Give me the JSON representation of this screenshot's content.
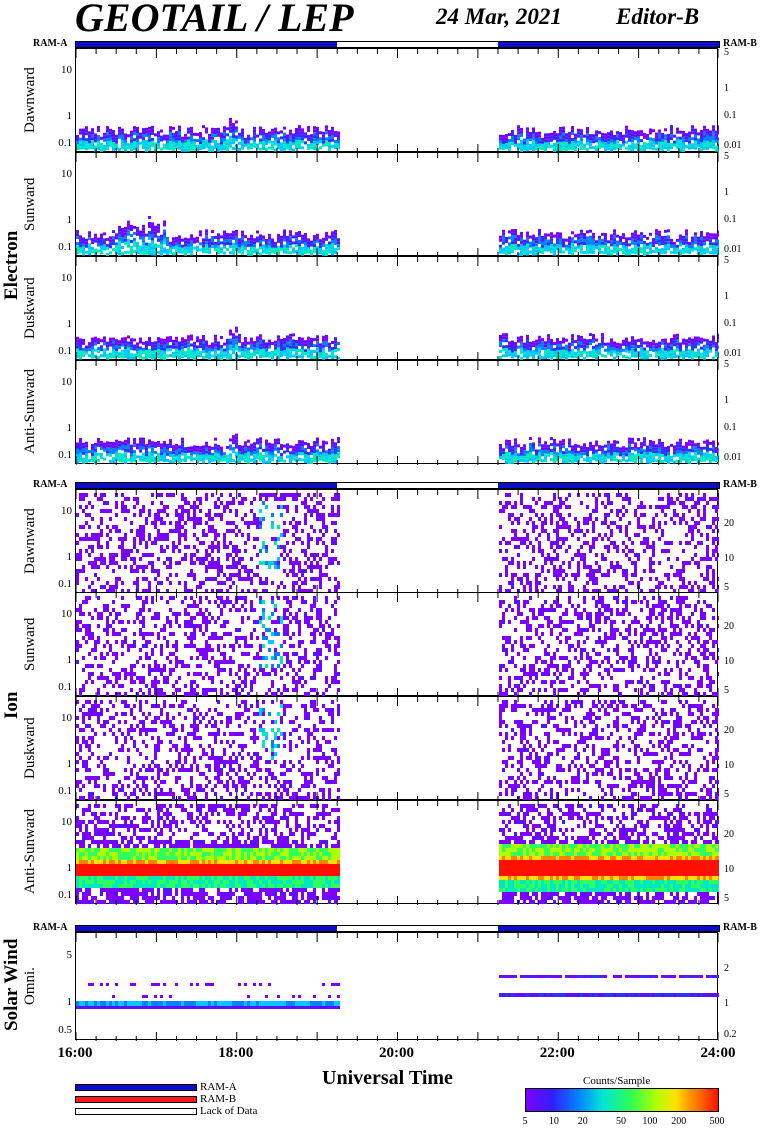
{
  "header": {
    "title": "GEOTAIL / LEP",
    "date": "24 Mar, 2021",
    "editor": "Editor-B"
  },
  "mode_labels": {
    "left": "RAM-A",
    "right": "RAM-B"
  },
  "colors": {
    "ram_a": "#0b10c8",
    "ram_b": "#ff1a1a",
    "lack": "#ffffff"
  },
  "species": {
    "electron": "Electron",
    "ion": "Ion",
    "solar_wind": "Solar Wind"
  },
  "chart_data": {
    "type": "heatmap",
    "xlabel": "Universal Time",
    "x_ticks": [
      "16:00",
      "18:00",
      "20:00",
      "22:00",
      "24:00"
    ],
    "x_range_hours": [
      16,
      24
    ],
    "data_gap_hours": [
      19.25,
      21.25
    ],
    "colorbar": {
      "title": "Counts/Sample",
      "ticks": [
        "5",
        "10",
        "20",
        "50",
        "100",
        "200",
        "500"
      ],
      "range": [
        5,
        500
      ],
      "scale": "log"
    },
    "legend": [
      {
        "name": "RAM-A",
        "color": "#0b10c8"
      },
      {
        "name": "RAM-B",
        "color": "#ff1a1a"
      },
      {
        "name": "Lack of Data",
        "color": "#ffffff"
      }
    ],
    "electron_panels": [
      {
        "name": "Dawnward",
        "left_ticks": [
          "10",
          "1",
          "0.1"
        ],
        "right_ticks": [
          "5",
          "1",
          "0.1",
          "0.01"
        ],
        "band_ylim": [
          0.08,
          0.6
        ]
      },
      {
        "name": "Sunward",
        "left_ticks": [
          "10",
          "1",
          "0.1"
        ],
        "right_ticks": [
          "5",
          "1",
          "0.1",
          "0.01"
        ],
        "band_ylim": [
          0.08,
          0.8
        ]
      },
      {
        "name": "Duskward",
        "left_ticks": [
          "10",
          "1",
          "0.1"
        ],
        "right_ticks": [
          "5",
          "1",
          "0.1",
          "0.01"
        ],
        "band_ylim": [
          0.08,
          0.5
        ]
      },
      {
        "name": "Anti-Sunward",
        "left_ticks": [
          "10",
          "1",
          "0.1"
        ],
        "right_ticks": [
          "5",
          "1",
          "0.1",
          "0.01"
        ],
        "band_ylim": [
          0.08,
          0.5
        ]
      }
    ],
    "ion_panels": [
      {
        "name": "Dawnward",
        "left_ticks": [
          "10",
          "1",
          "0.1"
        ],
        "right_ticks": [
          "20",
          "10",
          "5"
        ]
      },
      {
        "name": "Sunward",
        "left_ticks": [
          "10",
          "1",
          "0.1"
        ],
        "right_ticks": [
          "20",
          "10",
          "5"
        ]
      },
      {
        "name": "Duskward",
        "left_ticks": [
          "10",
          "1",
          "0.1"
        ],
        "right_ticks": [
          "20",
          "10",
          "5"
        ]
      },
      {
        "name": "Anti-Sunward",
        "left_ticks": [
          "10",
          "1",
          "0.1"
        ],
        "right_ticks": [
          "20",
          "10",
          "5"
        ]
      }
    ],
    "solar_wind_panel": {
      "name": "Omni.",
      "left_ticks": [
        "5",
        "1",
        "0.5"
      ],
      "right_ticks": [
        "2",
        "1",
        "0.2"
      ]
    }
  }
}
